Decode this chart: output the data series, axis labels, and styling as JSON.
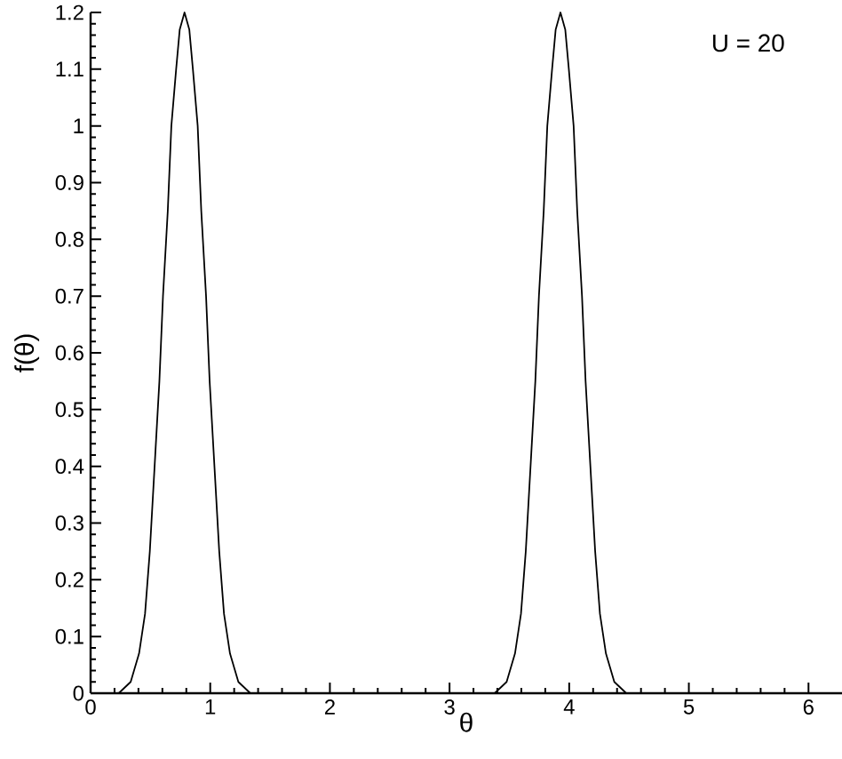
{
  "chart_data": {
    "type": "line",
    "xlabel": "θ",
    "ylabel": "f(θ)",
    "annotations": [
      "U = 20"
    ],
    "x": [
      0,
      0.235,
      0.335,
      0.405,
      0.455,
      0.495,
      0.535,
      0.575,
      0.605,
      0.645,
      0.675,
      0.715,
      0.745,
      0.785,
      0.825,
      0.855,
      0.895,
      0.925,
      0.965,
      0.995,
      1.035,
      1.075,
      1.115,
      1.165,
      1.235,
      1.335,
      3.377,
      3.477,
      3.547,
      3.597,
      3.637,
      3.677,
      3.717,
      3.747,
      3.787,
      3.817,
      3.857,
      3.887,
      3.927,
      3.967,
      3.997,
      4.037,
      4.067,
      4.107,
      4.137,
      4.177,
      4.217,
      4.257,
      4.307,
      4.377,
      4.477,
      6.28
    ],
    "series": [
      {
        "color": "#000000",
        "values": [
          0,
          0,
          0.02,
          0.07,
          0.14,
          0.25,
          0.4,
          0.55,
          0.7,
          0.85,
          1.0,
          1.1,
          1.17,
          1.2,
          1.17,
          1.1,
          1.0,
          0.85,
          0.7,
          0.55,
          0.4,
          0.25,
          0.14,
          0.07,
          0.02,
          0,
          0,
          0.02,
          0.07,
          0.14,
          0.25,
          0.4,
          0.55,
          0.7,
          0.85,
          1.0,
          1.1,
          1.17,
          1.2,
          1.17,
          1.1,
          1.0,
          0.85,
          0.7,
          0.55,
          0.4,
          0.25,
          0.14,
          0.07,
          0.02,
          0,
          0
        ]
      }
    ],
    "xlim": [
      0,
      6.28
    ],
    "ylim": [
      0,
      1.2
    ],
    "xticks": [
      0,
      1,
      2,
      3,
      4,
      5,
      6
    ],
    "yticks": [
      0,
      0.1,
      0.2,
      0.3,
      0.4,
      0.5,
      0.6,
      0.7,
      0.8,
      0.9,
      1,
      1.1,
      1.2
    ],
    "marker": "none",
    "line_style": "solid"
  }
}
